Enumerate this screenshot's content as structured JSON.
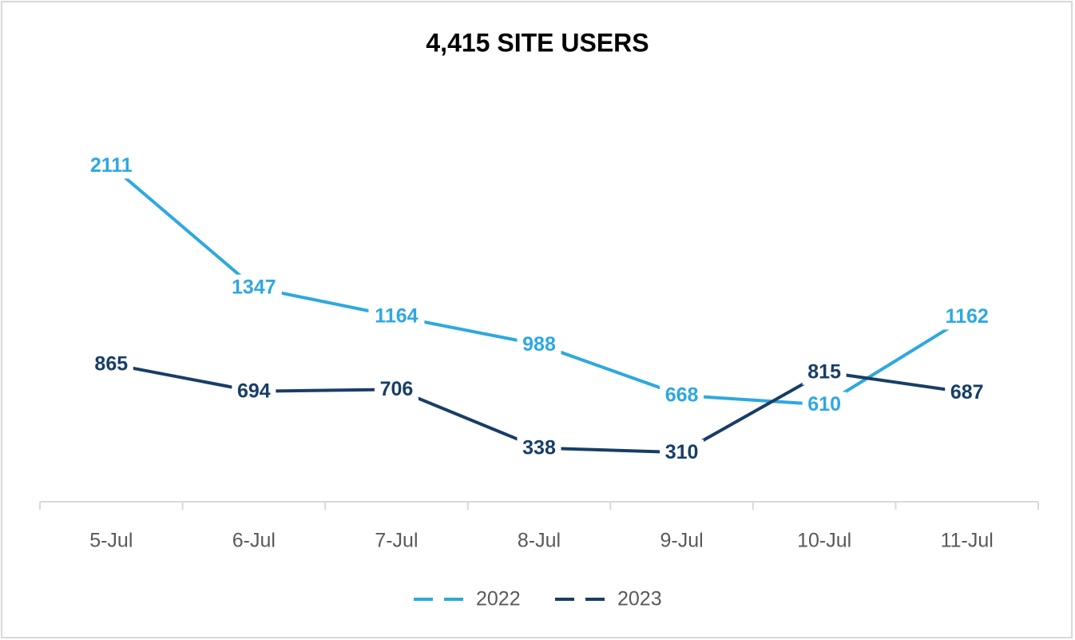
{
  "chart_data": {
    "type": "line",
    "title": "4,415 SITE USERS",
    "categories": [
      "5-Jul",
      "6-Jul",
      "7-Jul",
      "8-Jul",
      "9-Jul",
      "10-Jul",
      "11-Jul"
    ],
    "series": [
      {
        "name": "2022",
        "color": "#2ea8df",
        "values": [
          2111,
          1347,
          1164,
          988,
          668,
          610,
          1162
        ]
      },
      {
        "name": "2023",
        "color": "#173e66",
        "values": [
          865,
          694,
          706,
          338,
          310,
          815,
          687
        ]
      }
    ],
    "ylim": [
      0,
      2500
    ]
  }
}
